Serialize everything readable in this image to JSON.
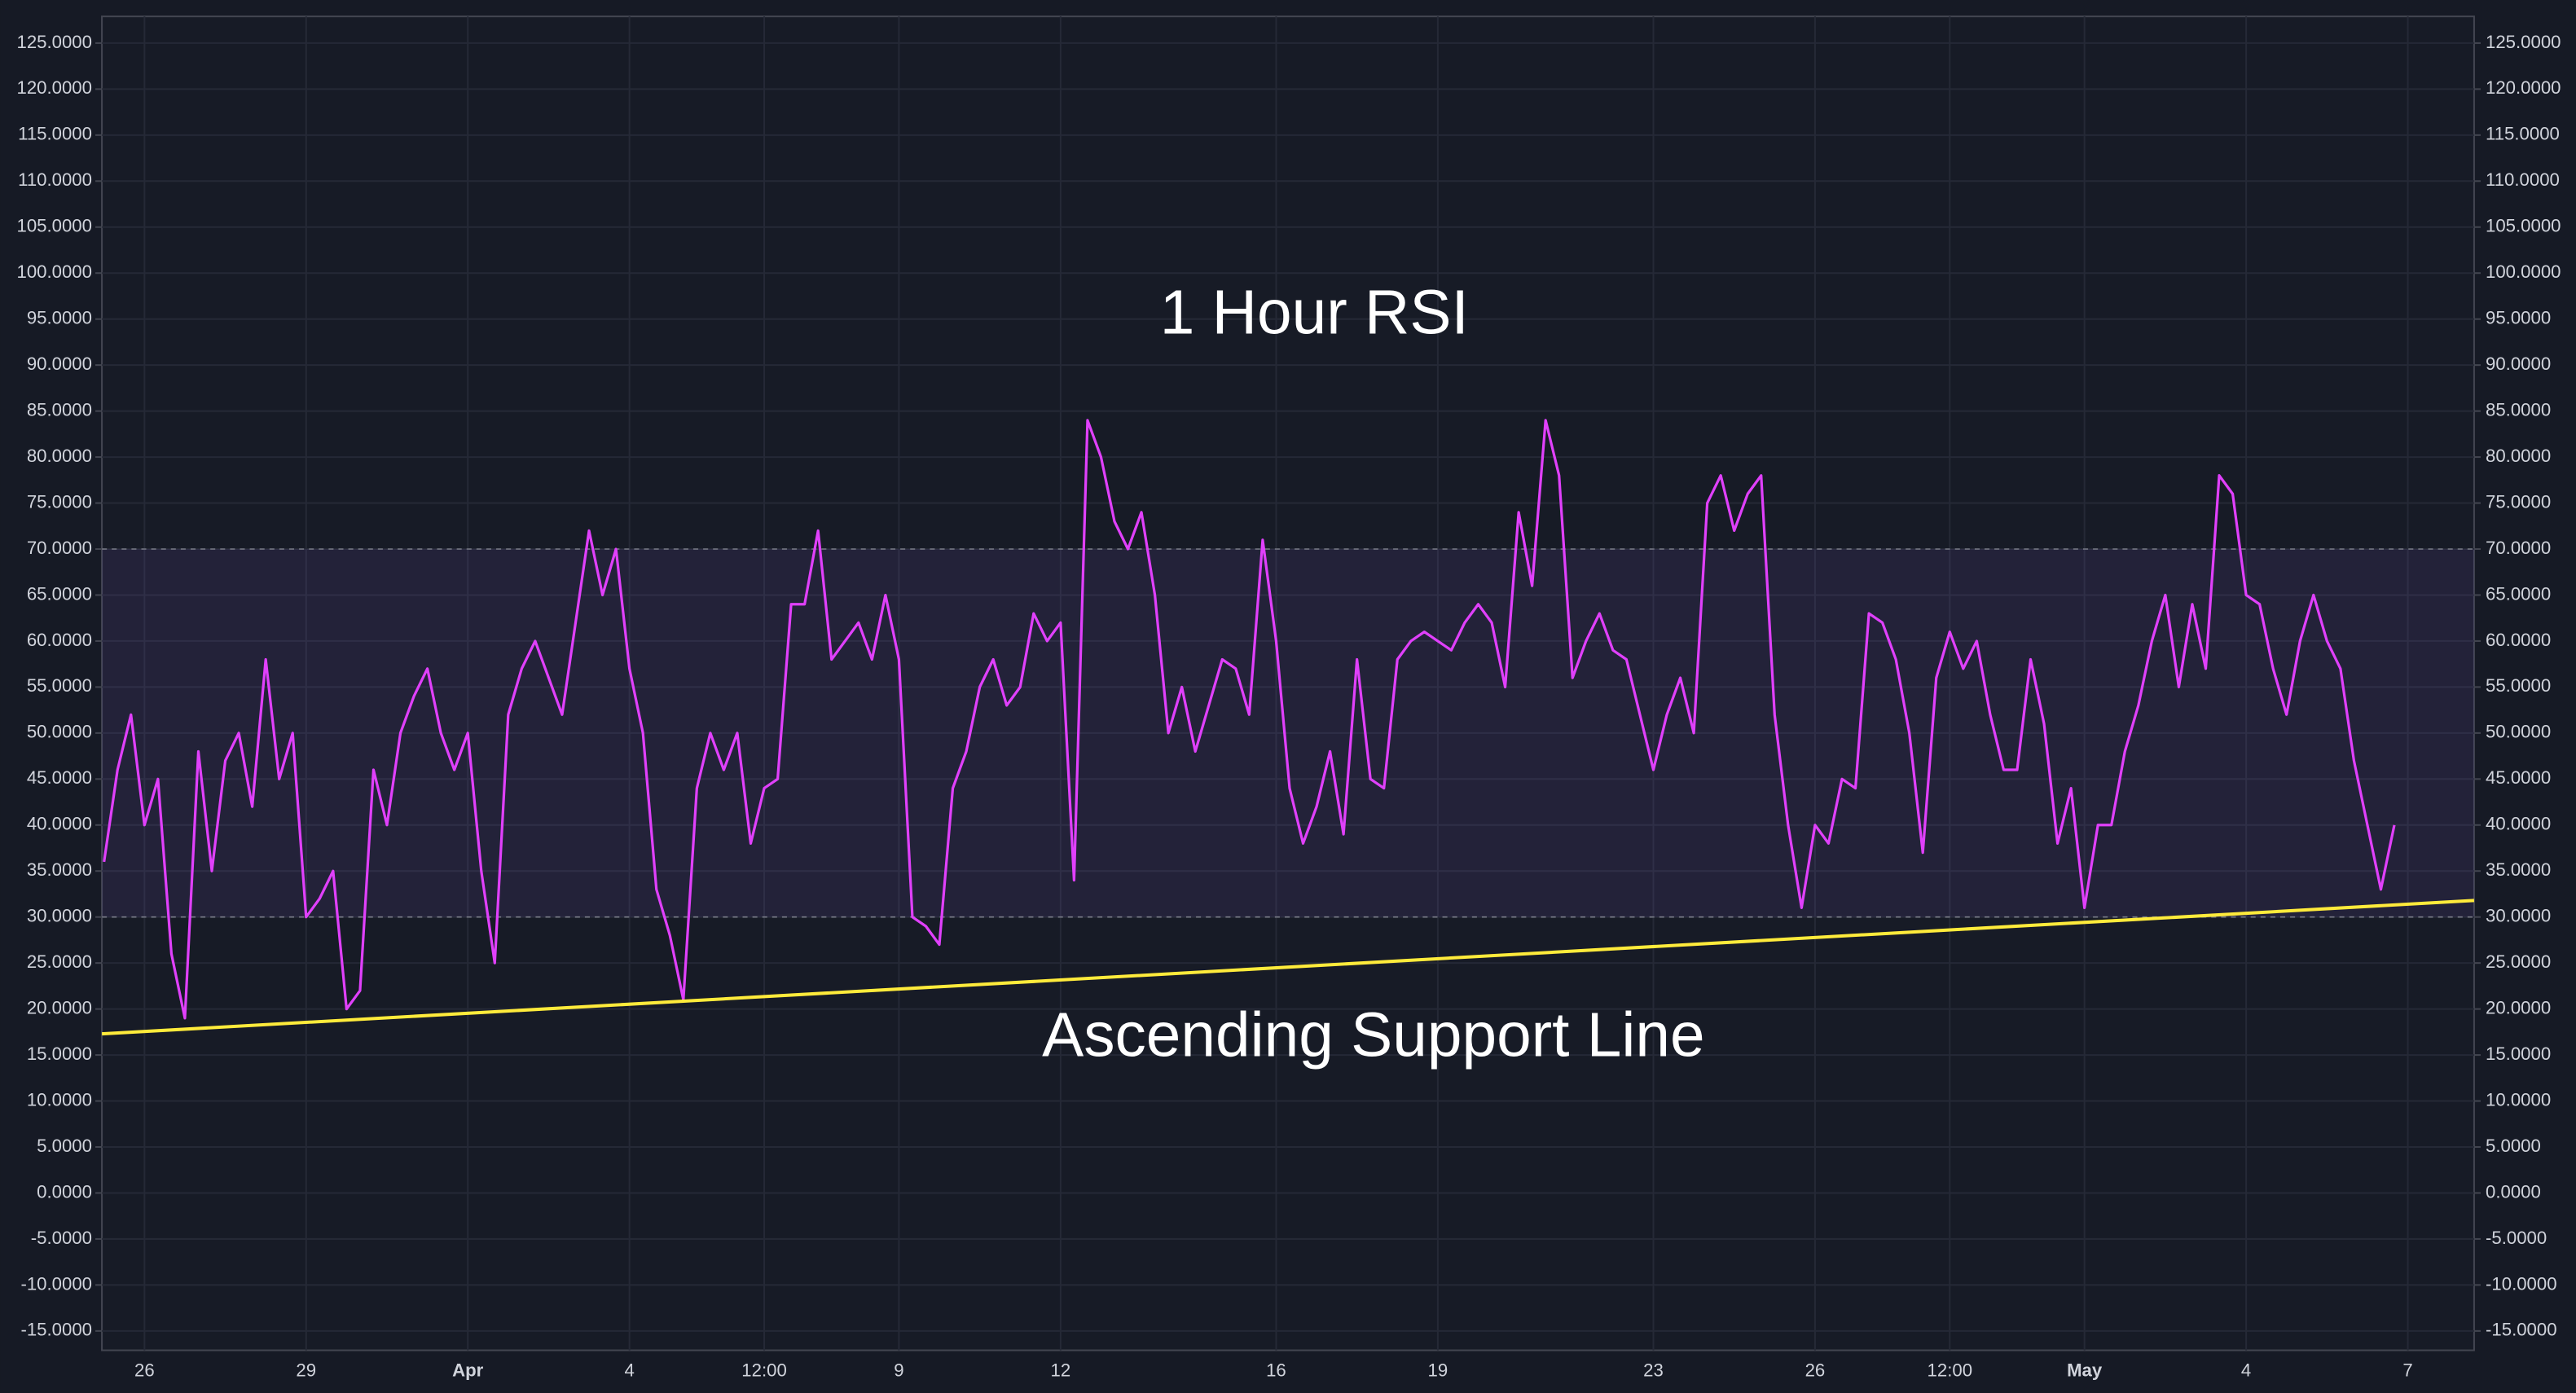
{
  "chart_data": {
    "type": "line",
    "title": "1 Hour RSI",
    "annotation": "Ascending Support Line",
    "xlim": [
      -0.79,
      43.23
    ],
    "ylim": [
      -17.1,
      127.9
    ],
    "grid": true,
    "xticks": [
      {
        "value": 0,
        "label": "26"
      },
      {
        "value": 3,
        "label": "29"
      },
      {
        "value": 6,
        "label": "Apr"
      },
      {
        "value": 9,
        "label": "4"
      },
      {
        "value": 11.5,
        "label": "12:00"
      },
      {
        "value": 14,
        "label": "9"
      },
      {
        "value": 17,
        "label": "12"
      },
      {
        "value": 21,
        "label": "16"
      },
      {
        "value": 24,
        "label": "19"
      },
      {
        "value": 28,
        "label": "23"
      },
      {
        "value": 31,
        "label": "26"
      },
      {
        "value": 33.5,
        "label": "12:00"
      },
      {
        "value": 36,
        "label": "May"
      },
      {
        "value": 39,
        "label": "4"
      },
      {
        "value": 42,
        "label": "7"
      }
    ],
    "yticks": [
      {
        "value": 125,
        "label": "125.0000"
      },
      {
        "value": 120,
        "label": "120.0000"
      },
      {
        "value": 115,
        "label": "115.0000"
      },
      {
        "value": 110,
        "label": "110.0000"
      },
      {
        "value": 105,
        "label": "105.0000"
      },
      {
        "value": 100,
        "label": "100.0000"
      },
      {
        "value": 95,
        "label": "95.0000"
      },
      {
        "value": 90,
        "label": "90.0000"
      },
      {
        "value": 85,
        "label": "85.0000"
      },
      {
        "value": 80,
        "label": "80.0000"
      },
      {
        "value": 75,
        "label": "75.0000"
      },
      {
        "value": 70,
        "label": "70.0000"
      },
      {
        "value": 65,
        "label": "65.0000"
      },
      {
        "value": 60,
        "label": "60.0000"
      },
      {
        "value": 55,
        "label": "55.0000"
      },
      {
        "value": 50,
        "label": "50.0000"
      },
      {
        "value": 45,
        "label": "45.0000"
      },
      {
        "value": 40,
        "label": "40.0000"
      },
      {
        "value": 35,
        "label": "35.0000"
      },
      {
        "value": 30,
        "label": "30.0000"
      },
      {
        "value": 25,
        "label": "25.0000"
      },
      {
        "value": 20,
        "label": "20.0000"
      },
      {
        "value": 15,
        "label": "15.0000"
      },
      {
        "value": 10,
        "label": "10.0000"
      },
      {
        "value": 5,
        "label": "5.0000"
      },
      {
        "value": 0,
        "label": "0.0000"
      },
      {
        "value": -5,
        "label": "-5.0000"
      },
      {
        "value": -10,
        "label": "-10.0000"
      },
      {
        "value": -15,
        "label": "-15.0000"
      }
    ],
    "band": [
      30,
      70
    ],
    "band_color": "#7e57c2",
    "series": [
      {
        "color": "#e040fb",
        "x": [
          -0.75,
          -0.5,
          -0.25,
          0,
          0.25,
          0.5,
          0.75,
          1,
          1.25,
          1.5,
          1.75,
          2,
          2.25,
          2.5,
          2.75,
          3,
          3.25,
          3.5,
          3.75,
          4,
          4.25,
          4.5,
          4.75,
          5,
          5.25,
          5.5,
          5.75,
          6,
          6.25,
          6.5,
          6.75,
          7,
          7.25,
          7.5,
          7.75,
          8,
          8.25,
          8.5,
          8.75,
          9,
          9.25,
          9.5,
          9.75,
          10,
          10.25,
          10.5,
          10.75,
          11,
          11.25,
          11.5,
          11.75,
          12,
          12.25,
          12.5,
          12.75,
          13,
          13.25,
          13.5,
          13.75,
          14,
          14.25,
          14.5,
          14.75,
          15,
          15.25,
          15.5,
          15.75,
          16,
          16.25,
          16.5,
          16.75,
          17,
          17.25,
          17.5,
          17.75,
          18,
          18.25,
          18.5,
          18.75,
          19,
          19.25,
          19.5,
          19.75,
          20,
          20.25,
          20.5,
          20.75,
          21,
          21.25,
          21.5,
          21.75,
          22,
          22.25,
          22.5,
          22.75,
          23,
          23.25,
          23.5,
          23.75,
          24,
          24.25,
          24.5,
          24.75,
          25,
          25.25,
          25.5,
          25.75,
          26,
          26.25,
          26.5,
          26.75,
          27,
          27.25,
          27.5,
          27.75,
          28,
          28.25,
          28.5,
          28.75,
          29,
          29.25,
          29.5,
          29.75,
          30,
          30.25,
          30.5,
          30.75,
          31,
          31.25,
          31.5,
          31.75,
          32,
          32.25,
          32.5,
          32.75,
          33,
          33.25,
          33.5,
          33.75,
          34,
          34.25,
          34.5,
          34.75,
          35,
          35.25,
          35.5,
          35.75,
          36,
          36.25,
          36.5,
          36.75,
          37,
          37.25,
          37.5,
          37.75,
          38,
          38.25,
          38.5,
          38.75,
          39,
          39.25,
          39.5,
          39.75,
          40,
          40.25,
          40.5,
          40.75,
          41,
          41.25,
          41.5,
          41.75
        ],
        "values": [
          36,
          46,
          52,
          40,
          45,
          26,
          19,
          48,
          35,
          47,
          50,
          42,
          58,
          45,
          50,
          30,
          32,
          35,
          20,
          22,
          46,
          40,
          50,
          54,
          57,
          50,
          46,
          50,
          35,
          25,
          52,
          57,
          60,
          56,
          52,
          62,
          72,
          65,
          70,
          57,
          50,
          33,
          28,
          21,
          44,
          50,
          46,
          50,
          38,
          44,
          45,
          64,
          64,
          72,
          58,
          60,
          62,
          58,
          65,
          58,
          30,
          29,
          27,
          44,
          48,
          55,
          58,
          53,
          55,
          63,
          60,
          62,
          34,
          84,
          80,
          73,
          70,
          74,
          65,
          50,
          55,
          48,
          53,
          58,
          57,
          52,
          71,
          60,
          44,
          38,
          42,
          48,
          39,
          58,
          45,
          44,
          58,
          60,
          61,
          60,
          59,
          62,
          64,
          62,
          55,
          74,
          66,
          84,
          78,
          56,
          60,
          63,
          59,
          58,
          52,
          46,
          52,
          56,
          50,
          75,
          78,
          72,
          76,
          78,
          52,
          40,
          31,
          40,
          38,
          45,
          44,
          63,
          62,
          58,
          50,
          37,
          56,
          61,
          57,
          60,
          52,
          46,
          46,
          58,
          51,
          38,
          44,
          31,
          40,
          40,
          48,
          53,
          60,
          65,
          55,
          64,
          57,
          78,
          76,
          65,
          64,
          57,
          52,
          60,
          65,
          60,
          57,
          47,
          40,
          33,
          40
        ]
      }
    ],
    "support_line": {
      "color": "#ffeb3b",
      "x": [
        -0.79,
        43.23
      ],
      "values": [
        17.3,
        31.8
      ]
    }
  }
}
